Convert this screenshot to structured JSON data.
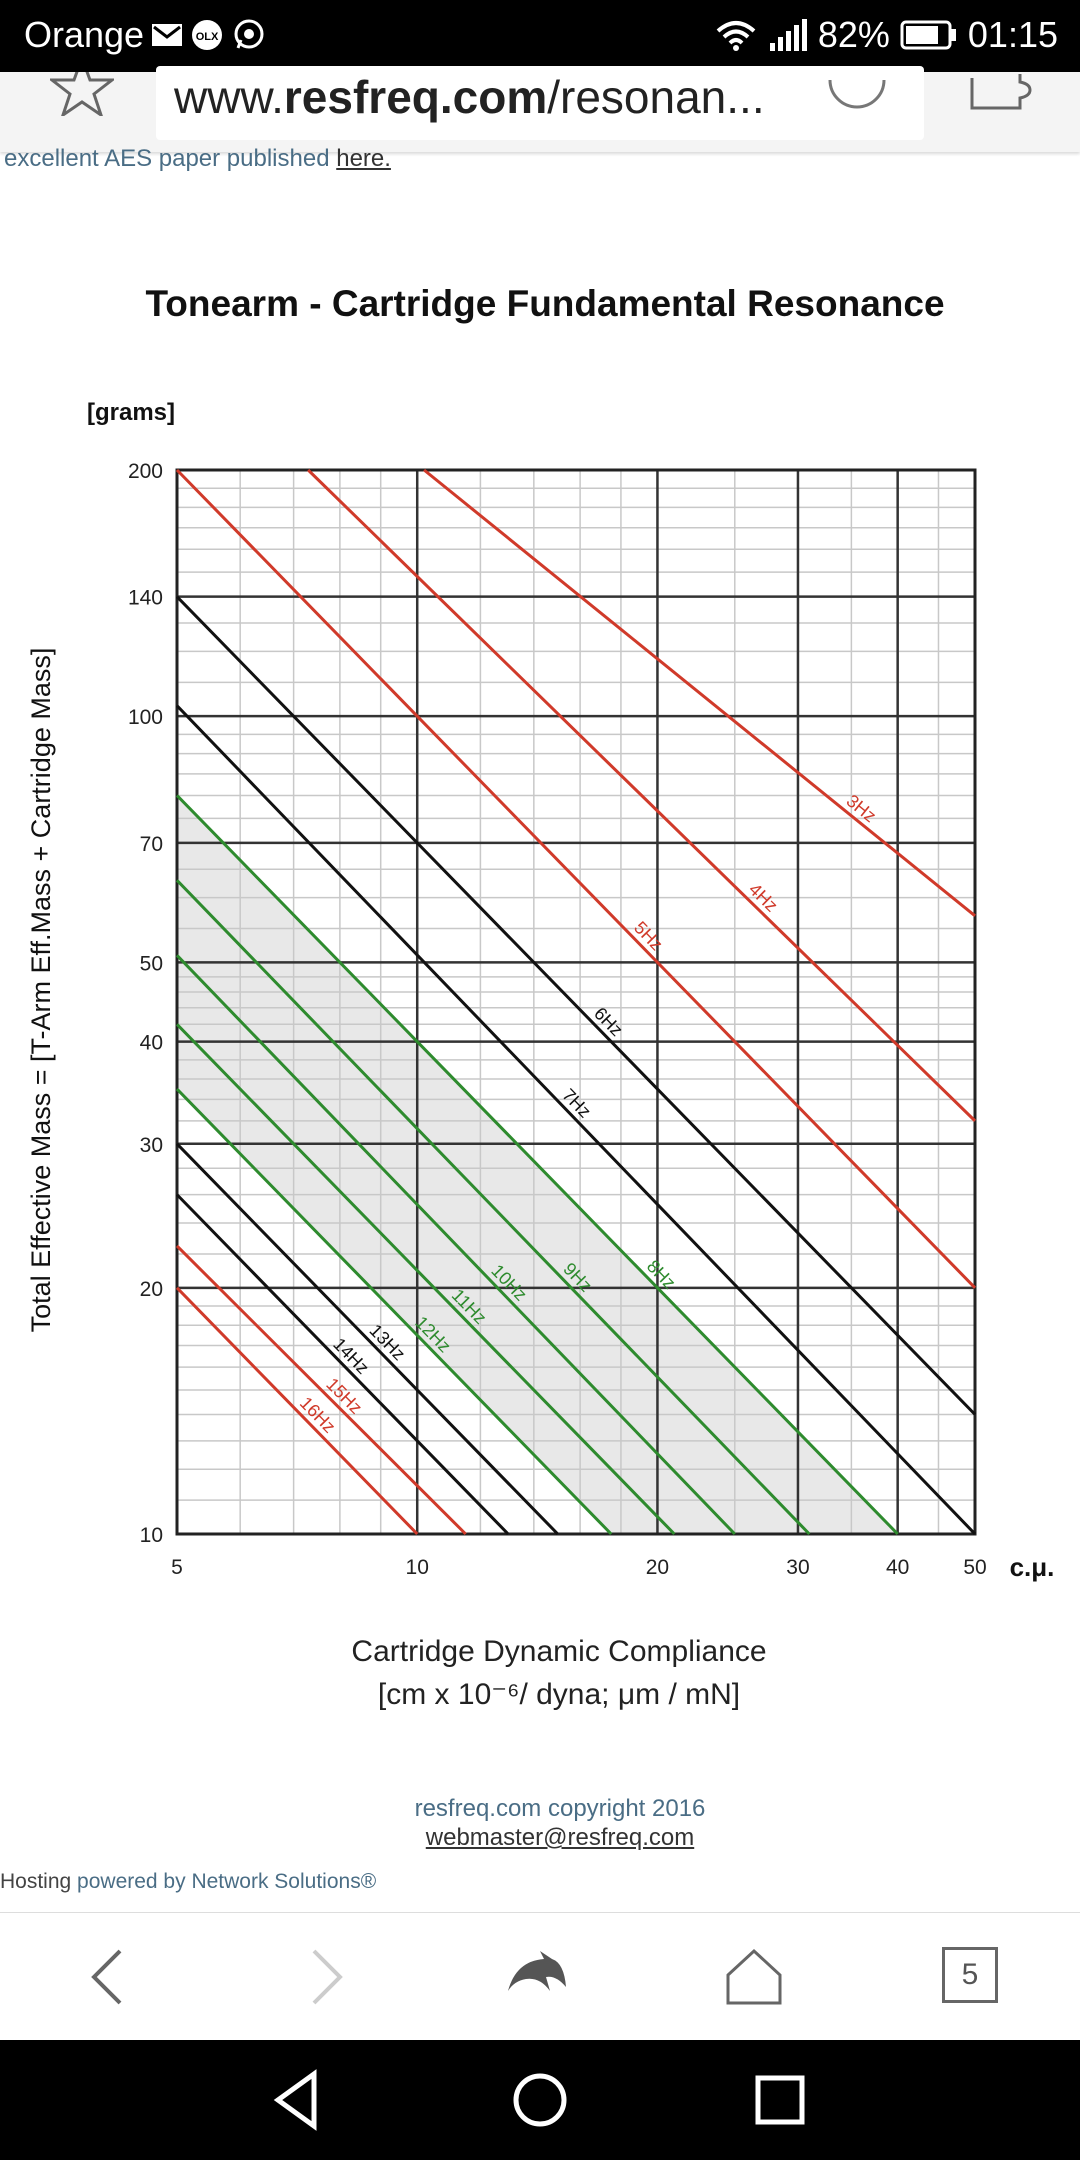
{
  "status_bar": {
    "carrier": "Orange",
    "icons": [
      "mail-icon",
      "olx-icon",
      "whatsapp-icon"
    ],
    "battery": "82%",
    "time": "01:15"
  },
  "address_bar": {
    "url_prefix": "www.",
    "url_domain": "resfreq.com",
    "url_path": "/resonan..."
  },
  "page": {
    "intro_text": "excellent AES paper published ",
    "intro_link": "here."
  },
  "chart_data": {
    "type": "line",
    "title": "Tonearm - Cartridge Fundamental Resonance",
    "y_unit_label": "[grams]",
    "ylabel": "Total Effective Mass = [T-Arm Eff.Mass + Cartridge Mass]",
    "xlabel_line1": "Cartridge Dynamic Compliance",
    "xlabel_line2": "[cm x 10⁻⁶/ dyna; μm / mN]",
    "x_unit_label": "c.μ.",
    "x_scale": "log",
    "y_scale": "log",
    "xlim": [
      5,
      50
    ],
    "ylim": [
      10,
      200
    ],
    "x_ticks": [
      "5",
      "10",
      "20",
      "30",
      "40",
      "50"
    ],
    "y_ticks": [
      "10",
      "20",
      "30",
      "40",
      "50",
      "70",
      "100",
      "140",
      "200"
    ],
    "grid": true,
    "series": [
      {
        "name": "3Hz",
        "color": "#d03a2a",
        "x": [
          10.2,
          50
        ],
        "y": [
          200,
          57
        ]
      },
      {
        "name": "4Hz",
        "color": "#d03a2a",
        "x": [
          7.3,
          50
        ],
        "y": [
          200,
          32
        ]
      },
      {
        "name": "5Hz",
        "color": "#d03a2a",
        "x": [
          5,
          50
        ],
        "y": [
          200,
          20
        ]
      },
      {
        "name": "6Hz",
        "color": "#111111",
        "x": [
          5,
          50
        ],
        "y": [
          140,
          14
        ]
      },
      {
        "name": "7Hz",
        "color": "#111111",
        "x": [
          5,
          50
        ],
        "y": [
          103,
          10
        ]
      },
      {
        "name": "8Hz",
        "color": "#2e8b2e",
        "x": [
          5,
          40
        ],
        "y": [
          80,
          10
        ]
      },
      {
        "name": "9Hz",
        "color": "#2e8b2e",
        "x": [
          5,
          31
        ],
        "y": [
          63,
          10
        ]
      },
      {
        "name": "10Hz",
        "color": "#2e8b2e",
        "x": [
          5,
          25
        ],
        "y": [
          51,
          10
        ]
      },
      {
        "name": "11Hz",
        "color": "#2e8b2e",
        "x": [
          5,
          21
        ],
        "y": [
          42,
          10
        ]
      },
      {
        "name": "12Hz",
        "color": "#2e8b2e",
        "x": [
          5,
          17.5
        ],
        "y": [
          35,
          10
        ]
      },
      {
        "name": "13Hz",
        "color": "#111111",
        "x": [
          5,
          15
        ],
        "y": [
          30,
          10
        ]
      },
      {
        "name": "14Hz",
        "color": "#111111",
        "x": [
          5,
          13
        ],
        "y": [
          26,
          10
        ]
      },
      {
        "name": "15Hz",
        "color": "#d03a2a",
        "x": [
          5,
          11.5
        ],
        "y": [
          22.5,
          10
        ]
      },
      {
        "name": "16Hz",
        "color": "#d03a2a",
        "x": [
          5,
          10
        ],
        "y": [
          20,
          10
        ]
      }
    ],
    "shaded_region": "between 8Hz and 12Hz"
  },
  "footer": {
    "copyright": "resfreq.com copyright 2016",
    "email": "webmaster@resfreq.com",
    "hosting_prefix": "Hosting ",
    "hosting_link": "powered by Network Solutions®"
  },
  "browser_nav": {
    "tab_count": "5",
    "icons": [
      "back-icon",
      "forward-icon",
      "dolphin-icon",
      "home-icon",
      "tabs-icon"
    ]
  }
}
